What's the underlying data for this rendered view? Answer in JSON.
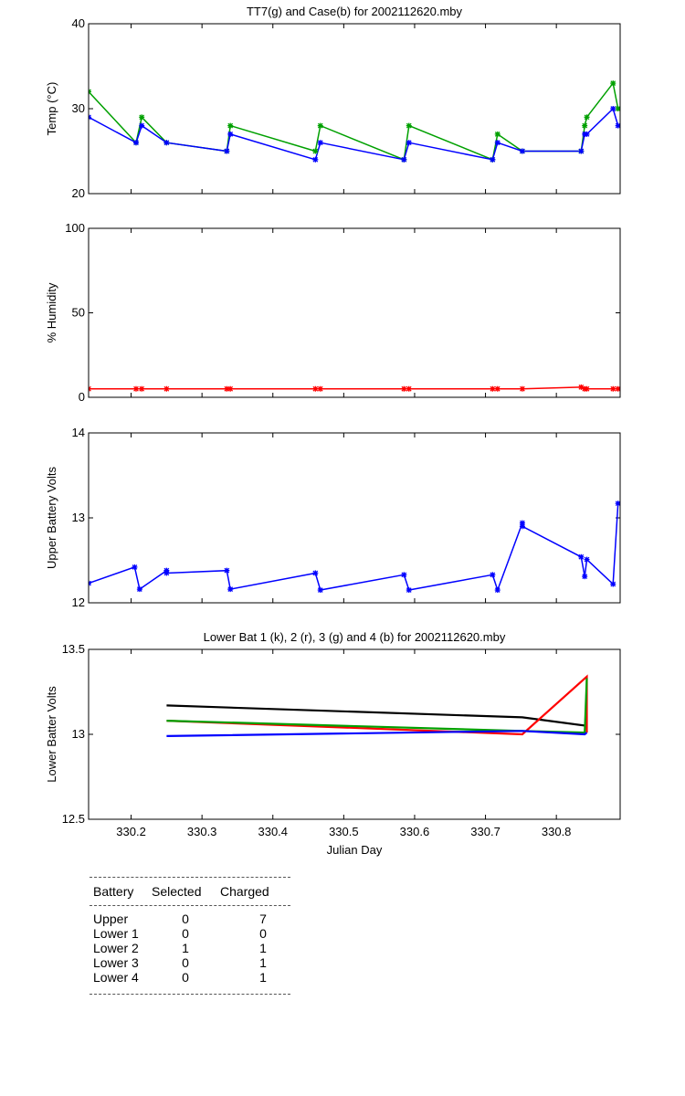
{
  "chart_data": [
    {
      "type": "line",
      "title": "TT7(g) and Case(b) for 2002112620.mby",
      "ylabel": "Temp  (°C)",
      "xlim": [
        330.14,
        330.89
      ],
      "ylim": [
        20,
        40
      ],
      "yticks": [
        20,
        30,
        40
      ],
      "grid": false,
      "series": [
        {
          "color": "#00a000",
          "marker": "*",
          "points": [
            [
              330.14,
              32
            ],
            [
              330.207,
              26
            ],
            [
              330.215,
              29
            ],
            [
              330.25,
              26
            ],
            [
              330.335,
              25
            ],
            [
              330.34,
              28
            ],
            [
              330.46,
              25
            ],
            [
              330.467,
              28
            ],
            [
              330.585,
              24
            ],
            [
              330.592,
              28
            ],
            [
              330.71,
              24
            ],
            [
              330.717,
              27
            ],
            [
              330.752,
              25
            ],
            [
              330.835,
              25
            ],
            [
              330.84,
              28
            ],
            [
              330.843,
              29
            ],
            [
              330.88,
              33
            ],
            [
              330.887,
              30
            ]
          ]
        },
        {
          "color": "#0000ff",
          "marker": "*",
          "points": [
            [
              330.14,
              29
            ],
            [
              330.207,
              26
            ],
            [
              330.215,
              28
            ],
            [
              330.25,
              26
            ],
            [
              330.335,
              25
            ],
            [
              330.34,
              27
            ],
            [
              330.46,
              24
            ],
            [
              330.467,
              26
            ],
            [
              330.585,
              24
            ],
            [
              330.592,
              26
            ],
            [
              330.71,
              24
            ],
            [
              330.717,
              26
            ],
            [
              330.752,
              25
            ],
            [
              330.835,
              25
            ],
            [
              330.84,
              27
            ],
            [
              330.843,
              27
            ],
            [
              330.88,
              30
            ],
            [
              330.887,
              28
            ]
          ]
        }
      ]
    },
    {
      "type": "line",
      "title": "",
      "ylabel": "% Humidity",
      "xlim": [
        330.14,
        330.89
      ],
      "ylim": [
        0,
        100
      ],
      "yticks": [
        0,
        50,
        100
      ],
      "grid": false,
      "series": [
        {
          "color": "#ff0000",
          "marker": "*",
          "points": [
            [
              330.14,
              5
            ],
            [
              330.207,
              5
            ],
            [
              330.215,
              5
            ],
            [
              330.25,
              5
            ],
            [
              330.335,
              5
            ],
            [
              330.34,
              5
            ],
            [
              330.46,
              5
            ],
            [
              330.467,
              5
            ],
            [
              330.585,
              5
            ],
            [
              330.592,
              5
            ],
            [
              330.71,
              5
            ],
            [
              330.717,
              5
            ],
            [
              330.752,
              5
            ],
            [
              330.835,
              6
            ],
            [
              330.84,
              5
            ],
            [
              330.843,
              5
            ],
            [
              330.88,
              5
            ],
            [
              330.887,
              5
            ]
          ]
        }
      ]
    },
    {
      "type": "line",
      "title": "",
      "ylabel": "Upper Battery Volts",
      "xlim": [
        330.14,
        330.89
      ],
      "ylim": [
        12,
        14
      ],
      "yticks": [
        12,
        13,
        14
      ],
      "grid": false,
      "series": [
        {
          "color": "#0000ff",
          "marker": "*",
          "points": [
            [
              330.14,
              12.23
            ],
            [
              330.205,
              12.42
            ],
            [
              330.212,
              12.16
            ],
            [
              330.25,
              12.38
            ],
            [
              330.25,
              12.35
            ],
            [
              330.335,
              12.38
            ],
            [
              330.34,
              12.16
            ],
            [
              330.46,
              12.35
            ],
            [
              330.467,
              12.15
            ],
            [
              330.585,
              12.33
            ],
            [
              330.592,
              12.15
            ],
            [
              330.71,
              12.33
            ],
            [
              330.717,
              12.15
            ],
            [
              330.752,
              12.94
            ],
            [
              330.752,
              12.9
            ],
            [
              330.835,
              12.54
            ],
            [
              330.84,
              12.31
            ],
            [
              330.843,
              12.51
            ],
            [
              330.88,
              12.22
            ],
            [
              330.887,
              13.17
            ]
          ]
        }
      ]
    },
    {
      "type": "line",
      "title": "Lower Bat 1 (k), 2 (r), 3 (g) and 4 (b) for 2002112620.mby",
      "xlabel": "Julian Day",
      "ylabel": "Lower Batter Volts",
      "xlim": [
        330.14,
        330.89
      ],
      "ylim": [
        12.5,
        13.5
      ],
      "yticks": [
        12.5,
        13,
        13.5
      ],
      "xticks": [
        330.2,
        330.3,
        330.4,
        330.5,
        330.6,
        330.7,
        330.8
      ],
      "grid": false,
      "series": [
        {
          "color": "#000000",
          "marker": "",
          "points": [
            [
              330.25,
              13.17
            ],
            [
              330.752,
              13.1
            ],
            [
              330.843,
              13.05
            ]
          ]
        },
        {
          "color": "#ff0000",
          "marker": "",
          "points": [
            [
              330.25,
              13.08
            ],
            [
              330.752,
              13.0
            ],
            [
              330.843,
              13.34
            ],
            [
              330.843,
              13.01
            ]
          ]
        },
        {
          "color": "#00a000",
          "marker": "",
          "points": [
            [
              330.25,
              13.08
            ],
            [
              330.752,
              13.02
            ],
            [
              330.84,
              13.01
            ],
            [
              330.843,
              13.33
            ]
          ]
        },
        {
          "color": "#0000ff",
          "marker": "",
          "points": [
            [
              330.25,
              12.99
            ],
            [
              330.752,
              13.02
            ],
            [
              330.84,
              13.0
            ],
            [
              330.843,
              13.01
            ]
          ]
        }
      ]
    }
  ],
  "battery_table": {
    "headers": [
      "Battery",
      "Selected",
      "Charged"
    ],
    "rows": [
      {
        "battery": "Upper",
        "selected": "0",
        "charged": "7"
      },
      {
        "battery": "Lower 1",
        "selected": "0",
        "charged": "0"
      },
      {
        "battery": "Lower 2",
        "selected": "1",
        "charged": "1"
      },
      {
        "battery": "Lower 3",
        "selected": "0",
        "charged": "1"
      },
      {
        "battery": "Lower 4",
        "selected": "0",
        "charged": "1"
      }
    ]
  }
}
